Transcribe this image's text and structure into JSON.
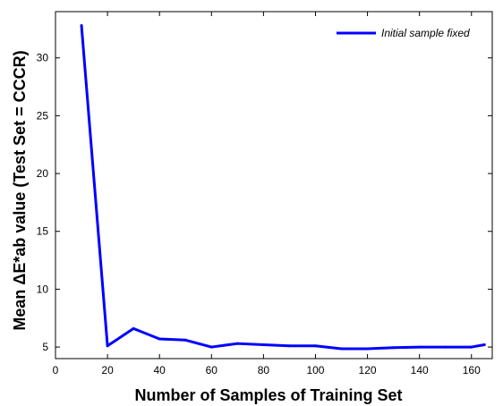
{
  "chart_data": {
    "type": "line",
    "xlabel": "Number of Samples of Training Set",
    "ylabel": "Mean ΔE*ab value (Test Set = CCCR)",
    "xlim": [
      0,
      168
    ],
    "ylim": [
      4,
      34
    ],
    "xticks": [
      0,
      20,
      40,
      60,
      80,
      100,
      120,
      140,
      160
    ],
    "yticks": [
      5,
      10,
      15,
      20,
      25,
      30
    ],
    "grid": false,
    "legend_position": "top-right",
    "series": [
      {
        "name": "Initial sample fixed",
        "color": "#0000ff",
        "x": [
          10,
          20,
          30,
          40,
          50,
          60,
          70,
          80,
          90,
          100,
          110,
          120,
          130,
          140,
          150,
          160,
          165
        ],
        "y": [
          32.8,
          5.1,
          6.6,
          5.7,
          5.6,
          5.0,
          5.3,
          5.2,
          5.1,
          5.1,
          4.85,
          4.85,
          4.95,
          5.0,
          5.0,
          5.0,
          5.2
        ]
      }
    ]
  }
}
